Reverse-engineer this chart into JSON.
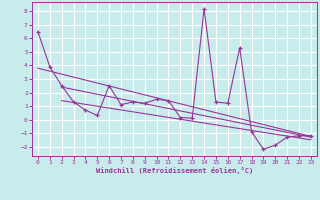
{
  "xlabel": "Windchill (Refroidissement éolien,°C)",
  "xlim": [
    -0.5,
    23.5
  ],
  "ylim": [
    -2.7,
    8.7
  ],
  "yticks": [
    -2,
    -1,
    0,
    1,
    2,
    3,
    4,
    5,
    6,
    7,
    8
  ],
  "xticks": [
    0,
    1,
    2,
    3,
    4,
    5,
    6,
    7,
    8,
    9,
    10,
    11,
    12,
    13,
    14,
    15,
    16,
    17,
    18,
    19,
    20,
    21,
    22,
    23
  ],
  "background_color": "#c8ecec",
  "grid_color": "#ffffff",
  "line_color": "#993399",
  "series1_x": [
    0,
    1,
    2,
    3,
    4,
    5,
    6,
    7,
    8,
    9,
    10,
    11,
    12,
    13,
    14,
    15,
    16,
    17,
    18,
    19,
    20,
    21,
    22,
    23
  ],
  "series1_y": [
    6.5,
    3.9,
    2.5,
    1.3,
    0.7,
    0.3,
    2.5,
    1.1,
    1.3,
    1.2,
    1.5,
    1.4,
    0.15,
    0.1,
    8.2,
    1.3,
    1.2,
    5.3,
    -0.9,
    -2.2,
    -1.9,
    -1.3,
    -1.2,
    -1.2
  ],
  "series2_x": [
    0,
    23
  ],
  "series2_y": [
    3.8,
    -1.25
  ],
  "series3_x": [
    2,
    23
  ],
  "series3_y": [
    2.4,
    -1.3
  ],
  "series4_x": [
    2,
    23
  ],
  "series4_y": [
    1.4,
    -1.5
  ]
}
